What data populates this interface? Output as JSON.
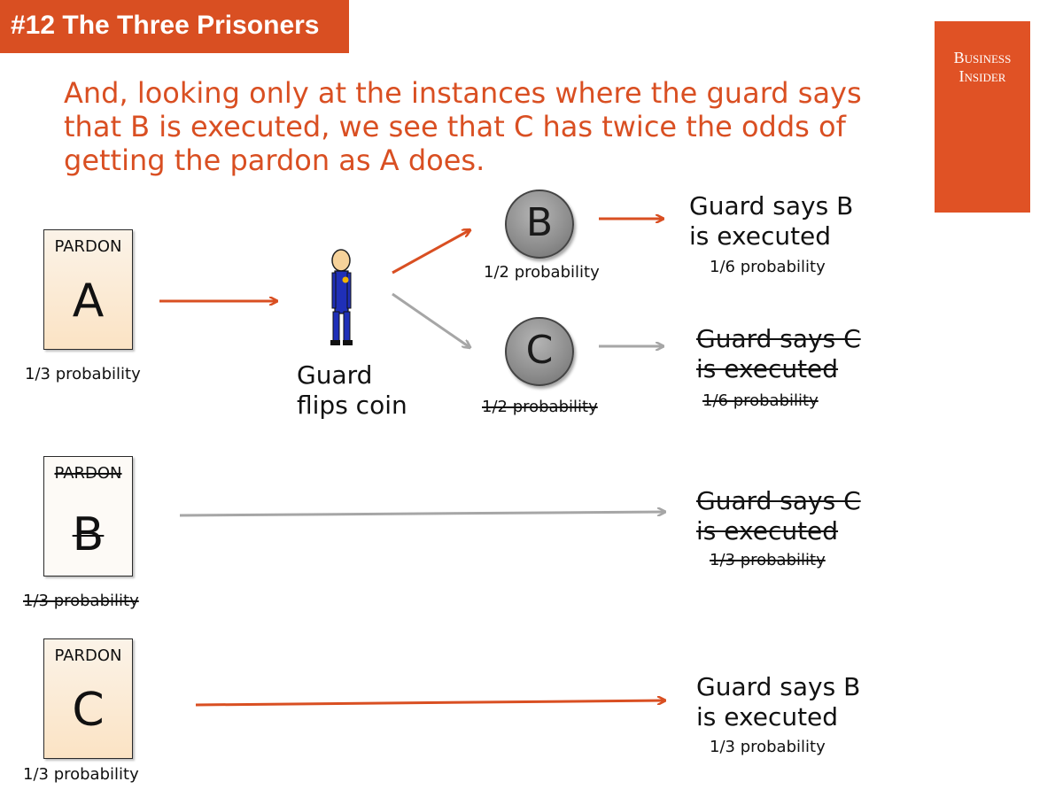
{
  "header": {
    "title": "#12  The Three Prisoners",
    "logo_line1": "Business",
    "logo_line2": "Insider"
  },
  "subtitle": "And, looking only at the instances where the guard says that B is executed, we see that C has twice the odds of getting the pardon as A does.",
  "cards": [
    {
      "label": "PARDON",
      "letter": "A",
      "probability": "1/3 probability",
      "struck": false
    },
    {
      "label": "PARDON",
      "letter": "B",
      "probability": "1/3 probability",
      "struck": true
    },
    {
      "label": "PARDON",
      "letter": "C",
      "probability": "1/3 probability",
      "struck": false
    }
  ],
  "guard": {
    "label_line1": "Guard",
    "label_line2": "flips coin",
    "icon": "guard-icon"
  },
  "coins": [
    {
      "letter": "B",
      "probability": "1/2 probability",
      "struck": false
    },
    {
      "letter": "C",
      "probability": "1/2 probability",
      "struck": true
    }
  ],
  "outcomes": [
    {
      "line1": "Guard says B",
      "line2": "is executed",
      "probability": "1/6 probability",
      "struck": false
    },
    {
      "line1": "Guard says C",
      "line2": "is executed",
      "probability": "1/6 probability",
      "struck": true
    },
    {
      "line1": "Guard says C",
      "line2": "is executed",
      "probability": "1/3 probability",
      "struck": true
    },
    {
      "line1": "Guard says B",
      "line2": "is executed",
      "probability": "1/3 probability",
      "struck": false
    }
  ],
  "colors": {
    "accent": "#d94f22",
    "arrow_active": "#d94f22",
    "arrow_inactive": "#a6a6a6"
  }
}
